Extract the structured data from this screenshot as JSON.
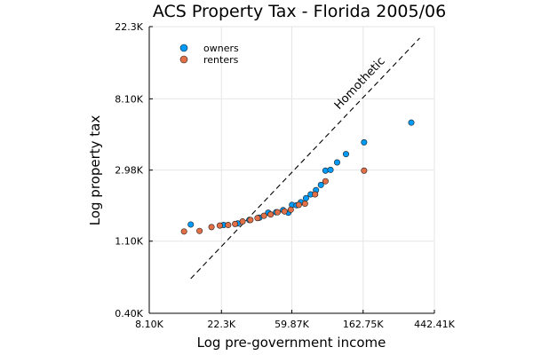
{
  "chart_data": {
    "type": "scatter",
    "title": "ACS Property Tax - Florida 2005/06",
    "xlabel": "Log pre-government income",
    "ylabel": "Log property tax",
    "x_scale": "log",
    "y_scale": "log",
    "xlim": [
      8100,
      442410
    ],
    "ylim": [
      400,
      22300
    ],
    "xticks": [
      {
        "value": 8100,
        "label": "8.10K"
      },
      {
        "value": 22300,
        "label": "22.3K"
      },
      {
        "value": 59870,
        "label": "59.87K"
      },
      {
        "value": 162750,
        "label": "162.75K"
      },
      {
        "value": 442410,
        "label": "442.41K"
      }
    ],
    "yticks": [
      {
        "value": 400,
        "label": "0.40K"
      },
      {
        "value": 1100,
        "label": "1.10K"
      },
      {
        "value": 2980,
        "label": "2.98K"
      },
      {
        "value": 8100,
        "label": "8.10K"
      },
      {
        "value": 22300,
        "label": "22.3K"
      }
    ],
    "grid": true,
    "legend": "top-left",
    "series": [
      {
        "name": "owners",
        "color": "#009AF9",
        "points": [
          [
            14500,
            1390
          ],
          [
            23000,
            1380
          ],
          [
            28000,
            1410
          ],
          [
            33000,
            1480
          ],
          [
            38000,
            1530
          ],
          [
            43000,
            1640
          ],
          [
            48000,
            1650
          ],
          [
            53000,
            1700
          ],
          [
            57000,
            1640
          ],
          [
            60000,
            1830
          ],
          [
            64000,
            1820
          ],
          [
            68000,
            1900
          ],
          [
            73000,
            2010
          ],
          [
            78000,
            2120
          ],
          [
            84000,
            2250
          ],
          [
            90000,
            2420
          ],
          [
            96000,
            2960
          ],
          [
            103000,
            2990
          ],
          [
            113000,
            3320
          ],
          [
            128000,
            3730
          ],
          [
            165000,
            4400
          ],
          [
            320000,
            5800
          ]
        ]
      },
      {
        "name": "renters",
        "color": "#E26F46",
        "points": [
          [
            13200,
            1260
          ],
          [
            16400,
            1270
          ],
          [
            19400,
            1340
          ],
          [
            21800,
            1370
          ],
          [
            24500,
            1380
          ],
          [
            27000,
            1400
          ],
          [
            30000,
            1450
          ],
          [
            33500,
            1480
          ],
          [
            37000,
            1520
          ],
          [
            40500,
            1570
          ],
          [
            44500,
            1600
          ],
          [
            49000,
            1650
          ],
          [
            54000,
            1670
          ],
          [
            59000,
            1710
          ],
          [
            66000,
            1830
          ],
          [
            72000,
            1860
          ],
          [
            83000,
            2120
          ],
          [
            96000,
            2550
          ],
          [
            165000,
            2960
          ]
        ]
      }
    ],
    "reference_line": {
      "label": "Homothetic",
      "color": "#000000",
      "style": "dashed",
      "x": [
        14500,
        360000
      ],
      "y": [
        650,
        19000
      ]
    }
  }
}
